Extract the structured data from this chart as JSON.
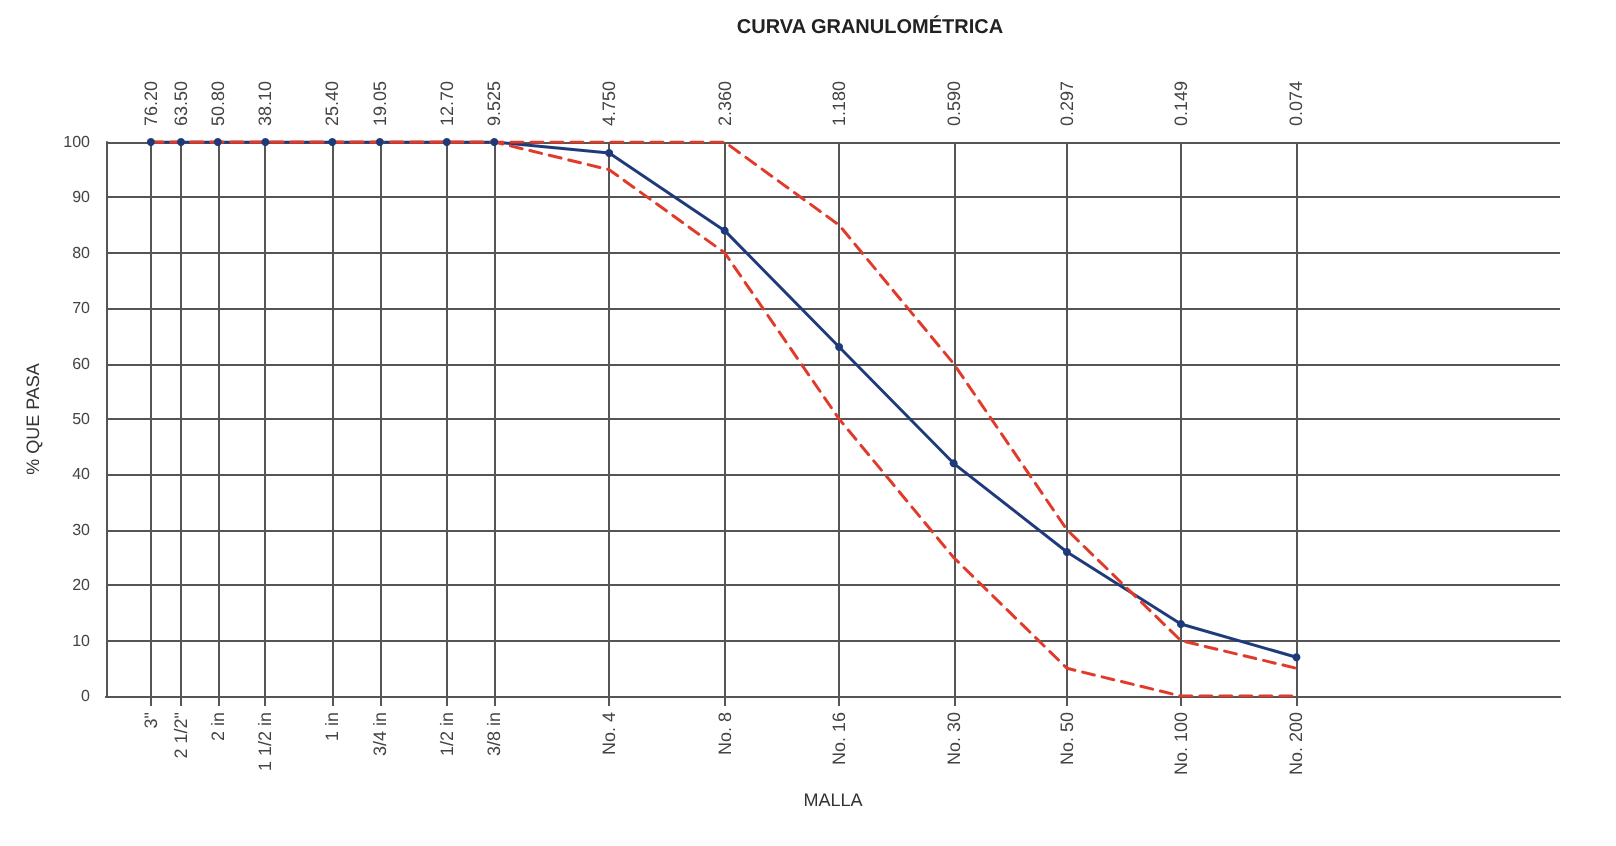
{
  "chart_data": {
    "type": "line",
    "title": "CURVA GRANULOMÉTRICA",
    "xlabel": "MALLA",
    "ylabel": "% QUE PASA",
    "x": [
      76.2,
      63.5,
      50.8,
      38.1,
      25.4,
      19.05,
      12.7,
      9.525,
      4.75,
      2.36,
      1.18,
      0.59,
      0.297,
      0.149,
      0.074
    ],
    "series": [
      {
        "color": "#1f3a7a",
        "marker": "circle",
        "line_style": "solid",
        "values": [
          100,
          100,
          100,
          100,
          100,
          100,
          100,
          100,
          98,
          84,
          63,
          42,
          26,
          13,
          7
        ]
      },
      {
        "color": "#e03a2a",
        "marker": "none",
        "line_style": "dashed",
        "values": [
          100,
          100,
          100,
          100,
          100,
          100,
          100,
          100,
          100,
          100,
          85,
          60,
          30,
          10,
          5
        ]
      },
      {
        "color": "#e03a2a",
        "marker": "none",
        "line_style": "dashed",
        "values": [
          100,
          100,
          100,
          100,
          100,
          100,
          100,
          100,
          95,
          80,
          50,
          25,
          5,
          0,
          0
        ]
      }
    ],
    "log": "x",
    "xlim": [
      100,
      0.015
    ],
    "xticks": [
      {
        "value": 76.2,
        "label": "76.20"
      },
      {
        "value": 63.5,
        "label": "63.50"
      },
      {
        "value": 50.8,
        "label": "50.80"
      },
      {
        "value": 38.1,
        "label": "38.10"
      },
      {
        "value": 25.4,
        "label": "25.40"
      },
      19.05,
      {
        "value": 12.7,
        "label": "12.70"
      },
      9.525,
      {
        "value": 4.75,
        "label": "4.750"
      },
      {
        "value": 2.36,
        "label": "2.360"
      },
      {
        "value": 1.18,
        "label": "1.180"
      },
      {
        "value": 0.59,
        "label": "0.590"
      },
      0.297,
      0.149,
      0.074
    ],
    "annotations": [
      "3\"",
      "2 1/2\"",
      "2 in",
      "1 1/2 in",
      "1 in",
      "3/4 in",
      "1/2 in",
      "3/8 in",
      "No. 4",
      "No. 8",
      "No. 16",
      "No. 30",
      "No. 50",
      "No. 100",
      "No. 200"
    ],
    "ylim": [
      0,
      100
    ],
    "yticks": [
      0,
      10,
      20,
      30,
      40,
      50,
      60,
      70,
      80,
      90,
      100
    ],
    "grid": true
  }
}
